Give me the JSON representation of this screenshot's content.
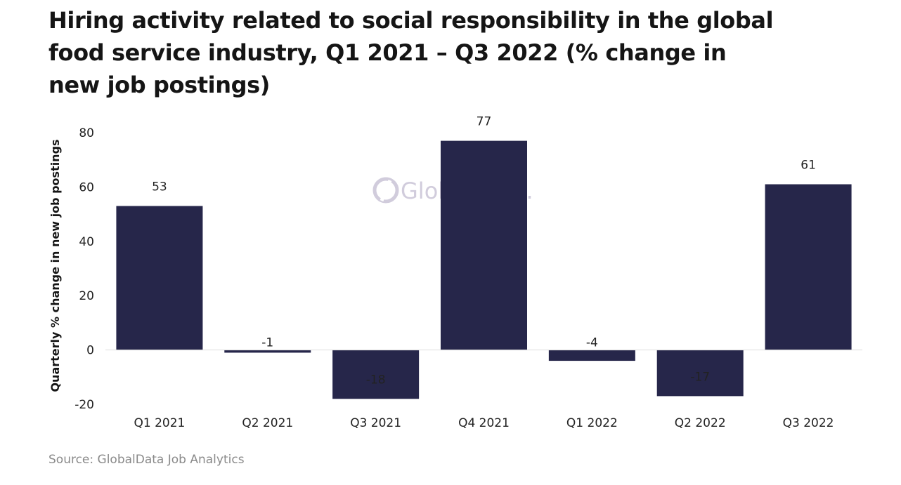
{
  "title": "Hiring activity related to social responsibility in the global food service industry, Q1 2021 – Q3 2022 (% change in new job postings)",
  "source": "Source: GlobalData Job Analytics",
  "watermark": "GlobalData.",
  "colors": {
    "bar": "#26264a",
    "zero_line": "#dddddd",
    "watermark": "#c9c4d6"
  },
  "chart_data": {
    "type": "bar",
    "title": "Hiring activity related to social responsibility in the global food service industry, Q1 2021 – Q3 2022 (% change in new job postings)",
    "xlabel": "",
    "ylabel": "Quarterly % change in new job postings",
    "categories": [
      "Q1 2021",
      "Q2 2021",
      "Q3 2021",
      "Q4 2021",
      "Q1 2022",
      "Q2 2022",
      "Q3 2022"
    ],
    "values": [
      53,
      -1,
      -18,
      77,
      -4,
      -17,
      61
    ],
    "ylim": [
      -20,
      80
    ],
    "yticks": [
      -20,
      0,
      20,
      40,
      60,
      80
    ],
    "grid": false,
    "legend": "none"
  }
}
